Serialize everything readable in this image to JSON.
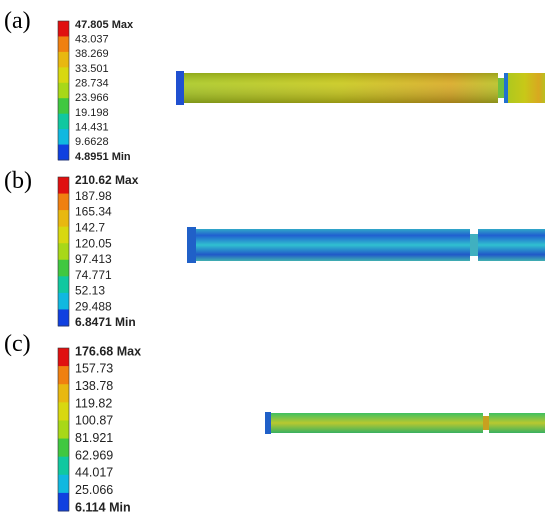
{
  "panels": [
    {
      "label": "(a)",
      "legend": [
        "47.805 Max",
        "43.037",
        "38.269",
        "33.501",
        "28.734",
        "23.966",
        "19.198",
        "14.431",
        "9.6628",
        "4.8951 Min"
      ]
    },
    {
      "label": "(b)",
      "legend": [
        "210.62 Max",
        "187.98",
        "165.34",
        "142.7",
        "120.05",
        "97.413",
        "74.771",
        "52.13",
        "29.488",
        "6.8471 Min"
      ]
    },
    {
      "label": "(c)",
      "legend": [
        "176.68 Max",
        "157.73",
        "138.78",
        "119.82",
        "100.87",
        "81.921",
        "62.969",
        "44.017",
        "25.066",
        "6.114 Min"
      ]
    }
  ]
}
